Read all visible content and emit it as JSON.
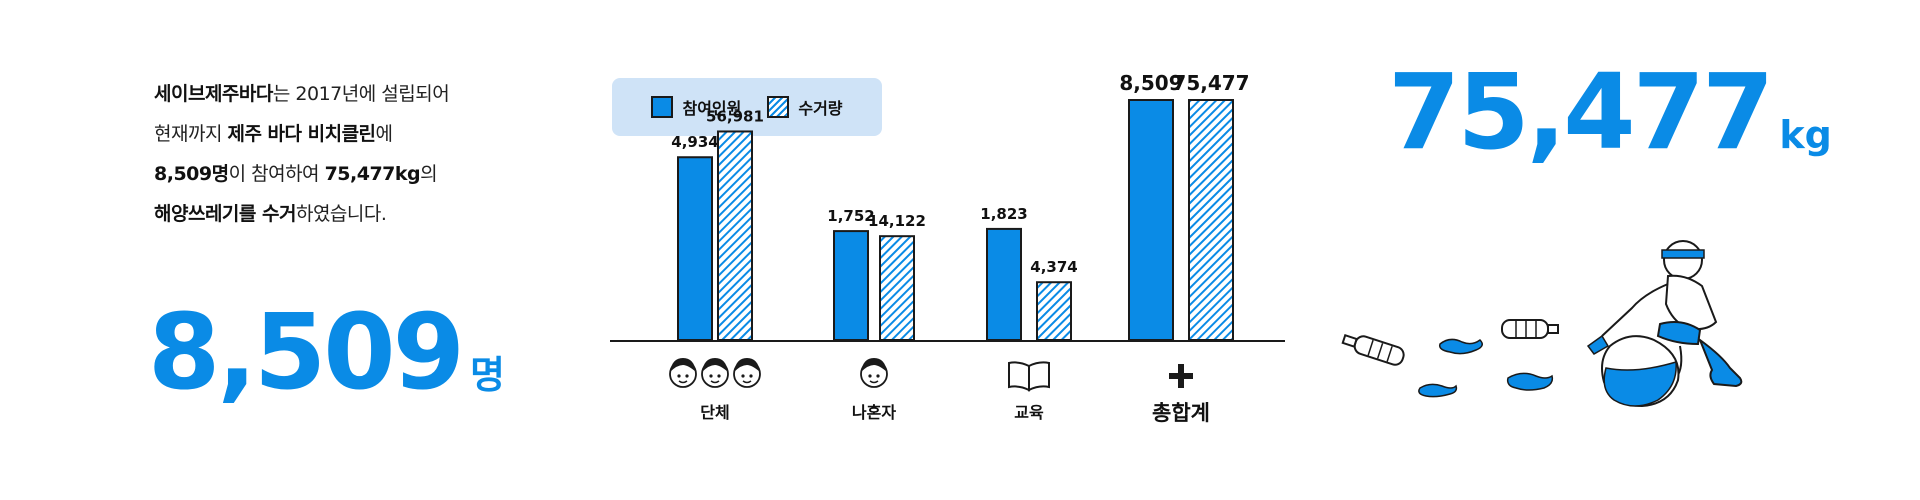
{
  "intro": {
    "line1_bold": "세이브제주바다",
    "line1_rest": "는 2017년에 설립되어",
    "line2_pre": "현재까지 ",
    "line2_bold": "제주 바다 비치클린",
    "line2_post": "에",
    "line3_bold1": "8,509명",
    "line3_mid": "이 참여하여 ",
    "line3_bold2": "75,477kg",
    "line3_post": "의",
    "line4_bold": "해양쓰레기를 수거",
    "line4_post": "하였습니다."
  },
  "highlights": {
    "people_value": "8,509",
    "people_unit": "명",
    "weight_value": "75,477",
    "weight_unit": "kg"
  },
  "legend": {
    "participants_label": "참여인원",
    "collected_label": "수거량"
  },
  "colors": {
    "accent": "#0a8be6",
    "legend_bg": "#cfe3f7",
    "outline": "#1a1a1a"
  },
  "chart_data": {
    "type": "bar",
    "categories": [
      "단체",
      "나혼자",
      "교육",
      "총합계"
    ],
    "series": [
      {
        "name": "참여인원",
        "values": [
          4934,
          1752,
          1823,
          8509
        ],
        "labels": [
          "4,934",
          "1,752",
          "1,823",
          "8,509"
        ],
        "style": "solid"
      },
      {
        "name": "수거량",
        "values": [
          56981,
          14122,
          4374,
          75477
        ],
        "labels": [
          "56,981",
          "14,122",
          "4,374",
          "75,477"
        ],
        "style": "hatched"
      }
    ],
    "category_icons": [
      "three-faces-icon",
      "one-face-icon",
      "book-icon",
      "plus-icon"
    ],
    "note": "Bars are illustrative (not a shared linear scale)",
    "title": "",
    "xlabel": "",
    "ylabel": "",
    "grid": false,
    "legend_position": "top-left"
  }
}
